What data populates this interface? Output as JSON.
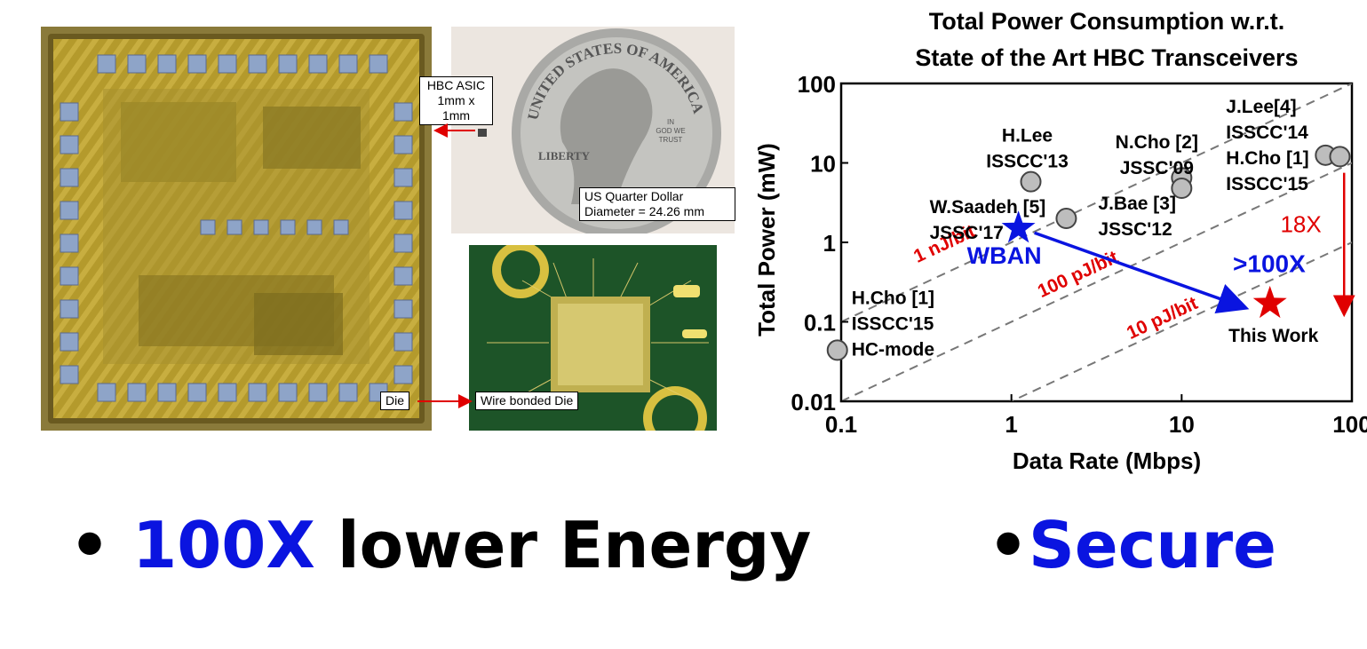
{
  "callouts": {
    "hbc_asic": [
      "HBC ASIC",
      "1mm x 1mm"
    ],
    "quarter": [
      "US Quarter Dollar",
      "Diameter = 24.26 mm"
    ],
    "die": "Die",
    "wire_bonded": "Wire bonded Die"
  },
  "coin": {
    "arc_text": "UNITED STATES OF AMERICA",
    "liberty": "LIBERTY",
    "god": [
      "IN",
      "GOD WE",
      "TRUST"
    ]
  },
  "bullets": {
    "left_highlight": "100X",
    "left_rest": " lower Energy",
    "right": "Secure"
  },
  "colors": {
    "blue": "#0a14e0",
    "red": "#e00000",
    "die_gold": "#b8a030"
  },
  "chart_data": {
    "type": "scatter",
    "title": [
      "Total Power Consumption w.r.t.",
      "State of the Art HBC Transceivers"
    ],
    "xlabel": "Data Rate (Mbps)",
    "ylabel": "Total Power (mW)",
    "xscale": "log",
    "yscale": "log",
    "xlim": [
      0.1,
      100
    ],
    "ylim": [
      0.01,
      100
    ],
    "xticks": [
      "0.1",
      "1",
      "10",
      "100"
    ],
    "yticks": [
      "100",
      "10",
      "1",
      "0.1",
      "0.01"
    ],
    "points": [
      {
        "label": [
          "H.Lee",
          "ISSCC'13"
        ],
        "x": 1.3,
        "y": 5.8
      },
      {
        "label": [
          "N.Cho [2]",
          "JSSC'09"
        ],
        "x": 10,
        "y": 6.5
      },
      {
        "label": [
          "N.Cho [2]",
          "JSSC'09"
        ],
        "x": 10,
        "y": 4.8
      },
      {
        "label": [
          "J.Bae [3]",
          "JSSC'12"
        ],
        "x": 2.1,
        "y": 2.0
      },
      {
        "label": [
          "J.Lee[4]",
          "ISSCC'14"
        ],
        "x": 70,
        "y": 12.5
      },
      {
        "label": [
          "H.Cho [1]",
          "ISSCC'15"
        ],
        "x": 85,
        "y": 12.0
      },
      {
        "label": [
          "H.Cho [1]",
          "ISSCC'15",
          "HC-mode"
        ],
        "x": 0.095,
        "y": 0.044
      }
    ],
    "stars": [
      {
        "label": [
          "W.Saadeh [5]",
          "JSSC'17"
        ],
        "x": 1.1,
        "y": 1.5,
        "color": "#0a14e0",
        "tag": "WBAN"
      },
      {
        "label": [
          "This Work"
        ],
        "x": 33,
        "y": 0.17,
        "color": "#e00000"
      }
    ],
    "energy_lines": [
      {
        "label": "1 nJ/bit",
        "k": 1
      },
      {
        "label": "100 pJ/bit",
        "k": 0.1
      },
      {
        "label": "10 pJ/bit",
        "k": 0.01
      }
    ],
    "annotations": [
      {
        "text": ">100X",
        "color": "#0a14e0"
      },
      {
        "text": "18X",
        "color": "#e00000"
      }
    ]
  }
}
